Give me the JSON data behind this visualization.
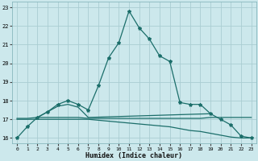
{
  "xlabel": "Humidex (Indice chaleur)",
  "bg_color": "#cce8ec",
  "grid_color": "#aacdd2",
  "line_color": "#1b6e6a",
  "xlim": [
    -0.5,
    23.5
  ],
  "ylim": [
    15.7,
    23.3
  ],
  "yticks": [
    16,
    17,
    18,
    19,
    20,
    21,
    22,
    23
  ],
  "xticks": [
    0,
    1,
    2,
    3,
    4,
    5,
    6,
    7,
    8,
    9,
    10,
    11,
    12,
    13,
    14,
    15,
    16,
    17,
    18,
    19,
    20,
    21,
    22,
    23
  ],
  "line1_x": [
    0,
    1,
    2,
    3,
    4,
    5,
    6,
    7,
    8,
    9,
    10,
    11,
    12,
    13,
    14,
    15,
    16,
    17,
    18,
    19,
    20,
    21,
    22,
    23
  ],
  "line1_y": [
    16.0,
    16.6,
    17.1,
    17.4,
    17.8,
    18.0,
    17.8,
    17.5,
    18.8,
    20.3,
    21.1,
    22.8,
    21.9,
    21.3,
    20.4,
    20.1,
    17.9,
    17.8,
    17.8,
    17.3,
    17.0,
    16.7,
    16.1,
    16.0
  ],
  "line2_x": [
    2,
    3,
    4,
    5,
    6,
    7,
    19
  ],
  "line2_y": [
    17.1,
    17.4,
    17.7,
    17.8,
    17.65,
    17.1,
    17.3
  ],
  "line3_x": [
    0,
    1,
    2,
    3,
    4,
    5,
    6,
    7,
    8,
    9,
    10,
    11,
    12,
    13,
    14,
    15,
    16,
    17,
    18,
    19,
    20,
    21,
    22,
    23
  ],
  "line3_y": [
    17.05,
    17.05,
    17.1,
    17.1,
    17.1,
    17.1,
    17.1,
    17.05,
    17.05,
    17.05,
    17.05,
    17.05,
    17.05,
    17.05,
    17.05,
    17.05,
    17.05,
    17.05,
    17.05,
    17.1,
    17.1,
    17.1,
    17.1,
    17.1
  ],
  "line4_x": [
    0,
    1,
    2,
    3,
    4,
    5,
    6,
    7,
    8,
    9,
    10,
    11,
    12,
    13,
    14,
    15,
    16,
    17,
    18,
    19,
    20,
    21,
    22,
    23
  ],
  "line4_y": [
    17.0,
    17.0,
    17.0,
    17.0,
    17.0,
    17.0,
    17.0,
    17.0,
    16.95,
    16.9,
    16.85,
    16.8,
    16.75,
    16.7,
    16.65,
    16.6,
    16.5,
    16.4,
    16.35,
    16.25,
    16.15,
    16.05,
    16.0,
    16.0
  ]
}
